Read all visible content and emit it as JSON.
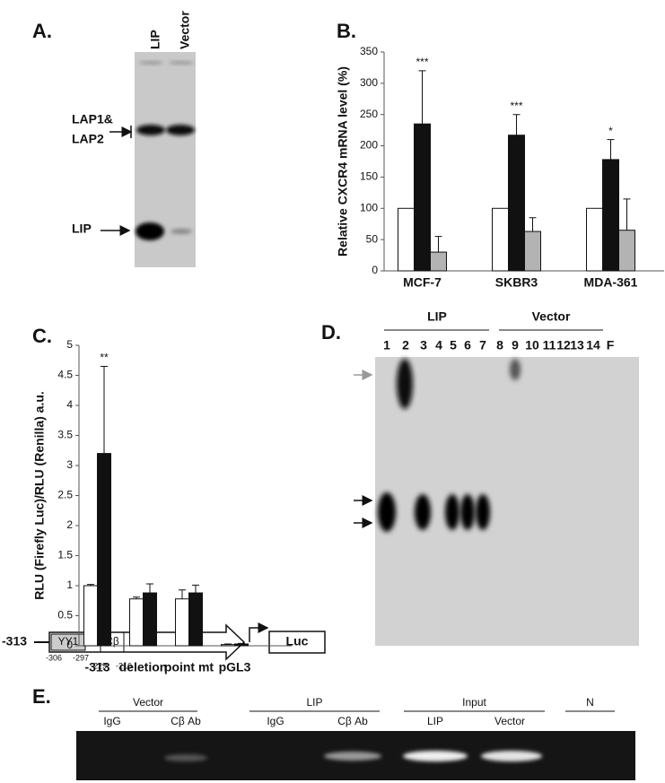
{
  "panel_a": {
    "label": "A.",
    "lanes": [
      "LIP",
      "Vector"
    ],
    "band_labels": [
      "LAP1&",
      "LAP2",
      "LIP"
    ]
  },
  "chart_data": [
    {
      "type": "bar",
      "panel_label": "B.",
      "ylabel": "Relative CXCR4 mRNA level (%)",
      "categories": [
        "MCF-7",
        "SKBR3",
        "MDA-361"
      ],
      "series": [
        {
          "color": "#ffffff",
          "values": [
            100,
            100,
            100
          ]
        },
        {
          "color": "#111111",
          "values": [
            235,
            217,
            178
          ],
          "errors": [
            85,
            33,
            32
          ],
          "annotations": [
            "***",
            "***",
            "*"
          ]
        },
        {
          "color": "#b3b3b3",
          "values": [
            30,
            63,
            65
          ],
          "errors": [
            25,
            22,
            50
          ]
        }
      ],
      "ylim": [
        0,
        350
      ],
      "yticks": [
        0,
        50,
        100,
        150,
        200,
        250,
        300,
        350
      ],
      "grid": false
    },
    {
      "type": "bar",
      "panel_label": "C.",
      "ylabel": "RLU (Firefly Luc)/RLU (Renilla) a.u.",
      "categories": [
        "-313",
        "deletion",
        "point mt",
        "pGL3"
      ],
      "series": [
        {
          "color": "#ffffff",
          "values": [
            1,
            0.78,
            0.78,
            0.02
          ],
          "errors": [
            0.02,
            0.03,
            0.15,
            0.01
          ]
        },
        {
          "color": "#111111",
          "values": [
            3.2,
            0.88,
            0.88,
            0.03
          ],
          "errors": [
            1.45,
            0.15,
            0.13,
            0.01
          ],
          "annotations": [
            "**",
            null,
            null,
            null
          ]
        }
      ],
      "ylim": [
        0,
        5
      ],
      "yticks": [
        0,
        0.5,
        1,
        1.5,
        2,
        2.5,
        3,
        3.5,
        4,
        4.5,
        5
      ],
      "grid": false
    }
  ],
  "diagram": {
    "promoter": "-313",
    "elements": [
      "YY1",
      "Cβ"
    ],
    "reporter": "Luc",
    "positions": [
      "-306",
      "-297",
      "-229",
      "-216"
    ]
  },
  "panel_d": {
    "label": "D.",
    "groups": [
      "LIP",
      "Vector"
    ],
    "lanes": [
      "1",
      "2",
      "3",
      "4",
      "5",
      "6",
      "7",
      "8",
      "9",
      "10",
      "11",
      "12",
      "13",
      "14",
      "F"
    ]
  },
  "panel_e": {
    "label": "E.",
    "groups": [
      "Vector",
      "LIP",
      "Input",
      "N"
    ],
    "lanes": [
      "IgG",
      "Cβ Ab",
      "IgG",
      "Cβ Ab",
      "LIP",
      "Vector"
    ]
  }
}
